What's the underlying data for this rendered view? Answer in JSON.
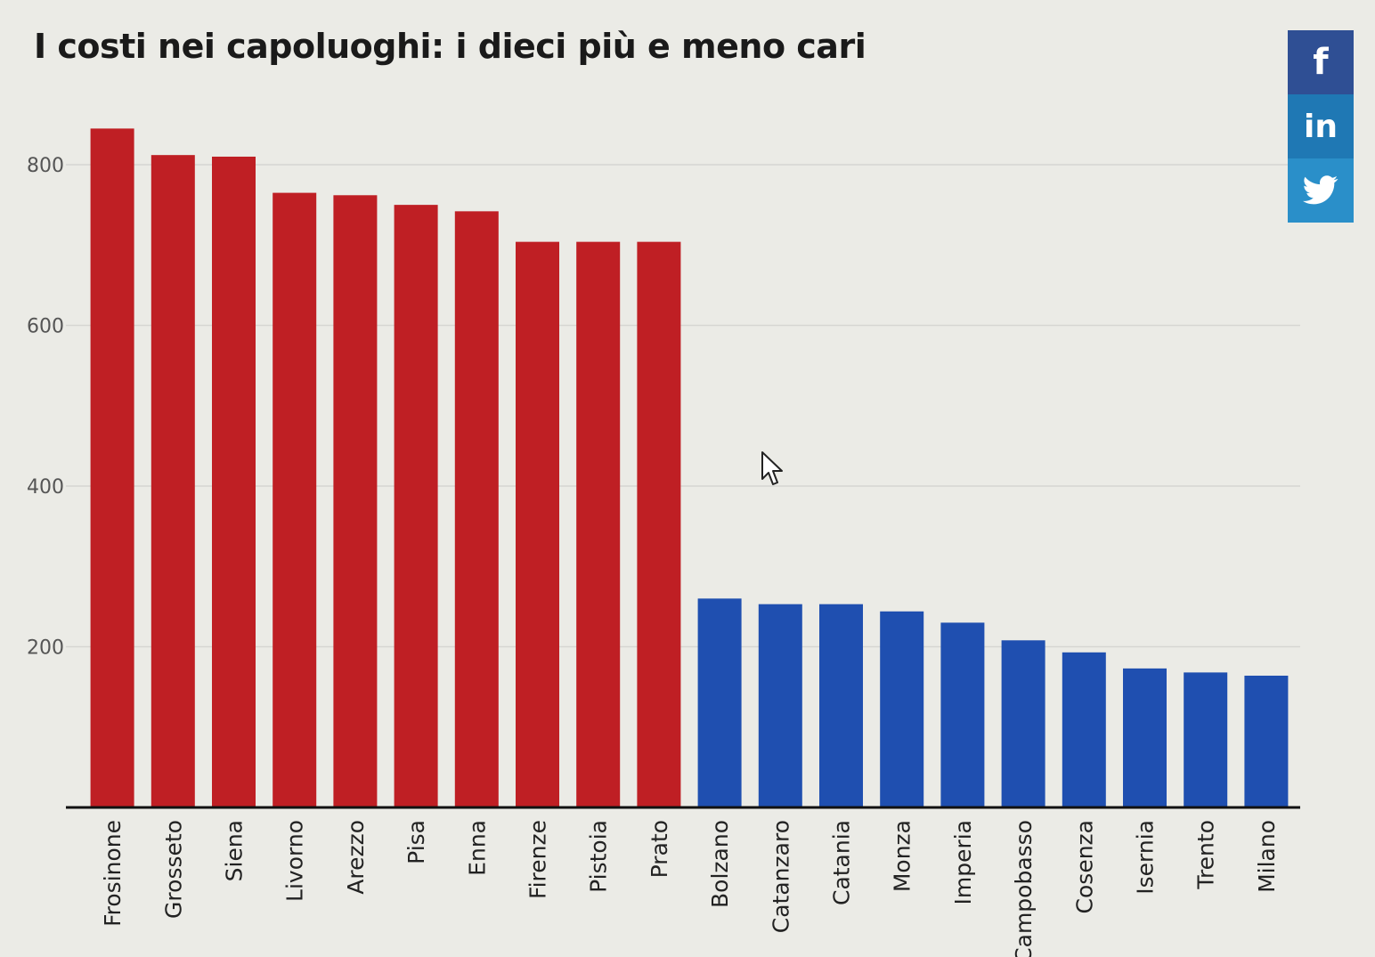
{
  "title": "I costi nei capoluoghi: i dieci più e meno cari",
  "social": {
    "facebook_glyph": "f",
    "linkedin_glyph": "in",
    "twitter_icon": "twitter-bird-icon"
  },
  "colors": {
    "most_expensive": "#bf1f24",
    "least_expensive": "#1f4fb0",
    "facebook": "#2f4f94",
    "linkedin": "#1f78b4",
    "twitter": "#2a8fc9"
  },
  "chart_data": {
    "type": "bar",
    "title": "I costi nei capoluoghi: i dieci più e meno cari",
    "xlabel": "",
    "ylabel": "",
    "ylim": [
      0,
      880
    ],
    "yticks": [
      200,
      400,
      600,
      800
    ],
    "grid": true,
    "legend": "none",
    "categories": [
      "Frosinone",
      "Grosseto",
      "Siena",
      "Livorno",
      "Arezzo",
      "Pisa",
      "Enna",
      "Firenze",
      "Pistoia",
      "Prato",
      "Bolzano",
      "Catanzaro",
      "Catania",
      "Monza",
      "Imperia",
      "Campobasso",
      "Cosenza",
      "Isernia",
      "Trento",
      "Milano"
    ],
    "values": [
      845,
      812,
      810,
      765,
      762,
      750,
      742,
      704,
      704,
      704,
      260,
      253,
      253,
      244,
      230,
      208,
      193,
      173,
      168,
      164
    ],
    "bar_groups": [
      "most_expensive",
      "most_expensive",
      "most_expensive",
      "most_expensive",
      "most_expensive",
      "most_expensive",
      "most_expensive",
      "most_expensive",
      "most_expensive",
      "most_expensive",
      "least_expensive",
      "least_expensive",
      "least_expensive",
      "least_expensive",
      "least_expensive",
      "least_expensive",
      "least_expensive",
      "least_expensive",
      "least_expensive",
      "least_expensive"
    ]
  }
}
